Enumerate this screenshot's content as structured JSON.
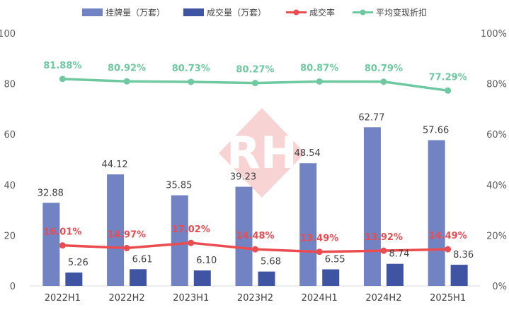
{
  "chart_data": {
    "type": "bar",
    "categories": [
      "2022H1",
      "2022H2",
      "2023H1",
      "2023H2",
      "2024H1",
      "2024H2",
      "2025H1"
    ],
    "series": [
      {
        "name": "挂牌量（万套）",
        "kind": "bar",
        "axis": "left",
        "color": "#7283c4",
        "values": [
          32.88,
          44.12,
          35.85,
          39.23,
          48.54,
          62.77,
          57.66
        ],
        "labels": [
          "32.88",
          "44.12",
          "35.85",
          "39.23",
          "48.54",
          "62.77",
          "57.66"
        ]
      },
      {
        "name": "成交量（万套）",
        "kind": "bar",
        "axis": "left",
        "color": "#4054a4",
        "values": [
          5.26,
          6.61,
          6.1,
          5.68,
          6.55,
          8.74,
          8.36
        ],
        "labels": [
          "5.26",
          "6.61",
          "6.10",
          "5.68",
          "6.55",
          "8.74",
          "8.36"
        ]
      },
      {
        "name": "成交率",
        "kind": "line",
        "axis": "right",
        "color": "#ea4c4f",
        "values": [
          16.01,
          14.97,
          17.02,
          14.48,
          13.49,
          13.92,
          14.49
        ],
        "labels": [
          "16.01%",
          "14.97%",
          "17.02%",
          "14.48%",
          "13.49%",
          "13.92%",
          "14.49%"
        ]
      },
      {
        "name": "平均变现折扣",
        "kind": "line",
        "axis": "right",
        "color": "#6ec8a0",
        "values": [
          81.88,
          80.92,
          80.73,
          80.27,
          80.87,
          80.79,
          77.29
        ],
        "labels": [
          "81.88%",
          "80.92%",
          "80.73%",
          "80.27%",
          "80.87%",
          "80.79%",
          "77.29%"
        ]
      }
    ],
    "y_left": {
      "min": 0,
      "max": 100,
      "ticks": [
        "0",
        "20",
        "40",
        "60",
        "80",
        "100"
      ]
    },
    "y_right": {
      "min": 0,
      "max": 100,
      "ticks": [
        "0%",
        "20%",
        "40%",
        "60%",
        "80%",
        "100%"
      ]
    },
    "legend_position": "top",
    "grid": false,
    "watermark": "RH"
  }
}
